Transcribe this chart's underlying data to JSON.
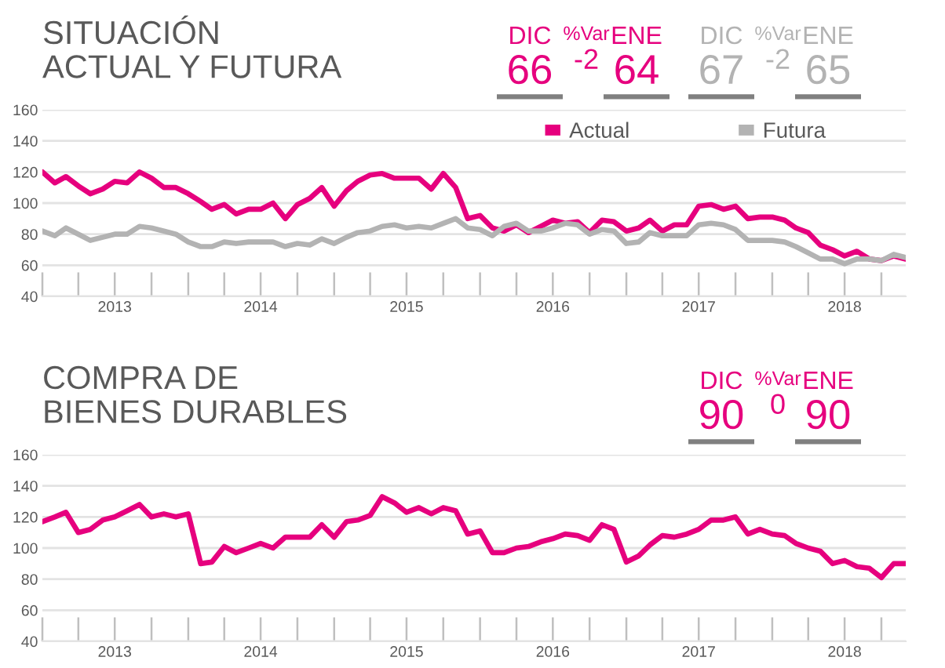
{
  "chart_data": [
    {
      "type": "line",
      "title": "SITUACIÓN\nACTUAL Y FUTURA",
      "annotations": [
        "DIC",
        "%Var",
        "ENE",
        "66",
        "-2",
        "64",
        "DIC",
        "%Var",
        "ENE",
        "67",
        "-2",
        "65"
      ],
      "x": [
        "2013-01",
        "2013-02",
        "2013-03",
        "2013-04",
        "2013-05",
        "2013-06",
        "2013-07",
        "2013-08",
        "2013-09",
        "2013-10",
        "2013-11",
        "2013-12",
        "2014-01",
        "2014-02",
        "2014-03",
        "2014-04",
        "2014-05",
        "2014-06",
        "2014-07",
        "2014-08",
        "2014-09",
        "2014-10",
        "2014-11",
        "2014-12",
        "2015-01",
        "2015-02",
        "2015-03",
        "2015-04",
        "2015-05",
        "2015-06",
        "2015-07",
        "2015-08",
        "2015-09",
        "2015-10",
        "2015-11",
        "2015-12",
        "2016-01",
        "2016-02",
        "2016-03",
        "2016-04",
        "2016-05",
        "2016-06",
        "2016-07",
        "2016-08",
        "2016-09",
        "2016-10",
        "2016-11",
        "2016-12",
        "2017-01",
        "2017-02",
        "2017-03",
        "2017-04",
        "2017-05",
        "2017-06",
        "2017-07",
        "2017-08",
        "2017-09",
        "2017-10",
        "2017-11",
        "2017-12",
        "2018-01",
        "2018-02",
        "2018-03",
        "2018-04",
        "2018-05",
        "2018-06",
        "2018-07",
        "2018-08",
        "2018-09",
        "2018-10",
        "2018-11",
        "2018-12"
      ],
      "series": [
        {
          "name": "Actual",
          "color": "#e6007e",
          "values": [
            120,
            113,
            117,
            111,
            106,
            109,
            114,
            113,
            120,
            116,
            110,
            110,
            106,
            101,
            96,
            99,
            93,
            96,
            96,
            100,
            90,
            99,
            103,
            110,
            98,
            108,
            114,
            118,
            119,
            116,
            116,
            116,
            109,
            119,
            110,
            90,
            92,
            84,
            82,
            86,
            81,
            85,
            89,
            87,
            88,
            81,
            89,
            88,
            82,
            84,
            89,
            82,
            86,
            86,
            98,
            99,
            96,
            98,
            90,
            91,
            91,
            89,
            84,
            81,
            73,
            70,
            66,
            69,
            64,
            63,
            66,
            64
          ]
        },
        {
          "name": "Futura",
          "color": "#b3b3b3",
          "values": [
            82,
            79,
            84,
            80,
            76,
            78,
            80,
            80,
            85,
            84,
            82,
            80,
            75,
            72,
            72,
            75,
            74,
            75,
            75,
            75,
            72,
            74,
            73,
            77,
            74,
            78,
            81,
            82,
            85,
            86,
            84,
            85,
            84,
            87,
            90,
            84,
            83,
            79,
            85,
            87,
            82,
            82,
            84,
            87,
            86,
            80,
            83,
            82,
            74,
            75,
            81,
            79,
            79,
            79,
            86,
            87,
            86,
            83,
            76,
            76,
            76,
            75,
            72,
            68,
            64,
            64,
            61,
            64,
            64,
            63,
            67,
            65
          ]
        }
      ],
      "xlim": [
        "2013-01",
        "2018-12"
      ],
      "xticks": [
        {
          "value": "2013-01",
          "label": null
        },
        {
          "value": "2013-04",
          "label": null
        },
        {
          "value": "2013-07",
          "label": "2013"
        },
        {
          "value": "2013-10",
          "label": null
        },
        {
          "value": "2014-01",
          "label": null
        },
        {
          "value": "2014-04",
          "label": null
        },
        {
          "value": "2014-07",
          "label": "2014"
        },
        {
          "value": "2014-10",
          "label": null
        },
        {
          "value": "2015-01",
          "label": null
        },
        {
          "value": "2015-04",
          "label": null
        },
        {
          "value": "2015-07",
          "label": "2015"
        },
        {
          "value": "2015-10",
          "label": null
        },
        {
          "value": "2016-01",
          "label": null
        },
        {
          "value": "2016-04",
          "label": null
        },
        {
          "value": "2016-07",
          "label": "2016"
        },
        {
          "value": "2016-10",
          "label": null
        },
        {
          "value": "2017-01",
          "label": null
        },
        {
          "value": "2017-04",
          "label": null
        },
        {
          "value": "2017-07",
          "label": "2017"
        },
        {
          "value": "2017-10",
          "label": null
        },
        {
          "value": "2018-01",
          "label": null
        },
        {
          "value": "2018-04",
          "label": null
        },
        {
          "value": "2018-07",
          "label": "2018"
        },
        {
          "value": "2018-10",
          "label": null
        }
      ],
      "ylim": [
        40,
        160
      ],
      "yticks": [
        40,
        60,
        80,
        100,
        120,
        140,
        160
      ],
      "grid": "y",
      "legend": "top right"
    },
    {
      "type": "line",
      "title": "COMPRA DE\nBIENES DURABLES",
      "annotations": [
        "DIC",
        "%Var",
        "ENE",
        "90",
        "0",
        "90"
      ],
      "x": [
        "2013-01",
        "2013-02",
        "2013-03",
        "2013-04",
        "2013-05",
        "2013-06",
        "2013-07",
        "2013-08",
        "2013-09",
        "2013-10",
        "2013-11",
        "2013-12",
        "2014-01",
        "2014-02",
        "2014-03",
        "2014-04",
        "2014-05",
        "2014-06",
        "2014-07",
        "2014-08",
        "2014-09",
        "2014-10",
        "2014-11",
        "2014-12",
        "2015-01",
        "2015-02",
        "2015-03",
        "2015-04",
        "2015-05",
        "2015-06",
        "2015-07",
        "2015-08",
        "2015-09",
        "2015-10",
        "2015-11",
        "2015-12",
        "2016-01",
        "2016-02",
        "2016-03",
        "2016-04",
        "2016-05",
        "2016-06",
        "2016-07",
        "2016-08",
        "2016-09",
        "2016-10",
        "2016-11",
        "2016-12",
        "2017-01",
        "2017-02",
        "2017-03",
        "2017-04",
        "2017-05",
        "2017-06",
        "2017-07",
        "2017-08",
        "2017-09",
        "2017-10",
        "2017-11",
        "2017-12",
        "2018-01",
        "2018-02",
        "2018-03",
        "2018-04",
        "2018-05",
        "2018-06",
        "2018-07",
        "2018-08",
        "2018-09",
        "2018-10",
        "2018-11",
        "2018-12"
      ],
      "series": [
        {
          "color": "#e6007e",
          "values": [
            117,
            120,
            123,
            110,
            112,
            118,
            120,
            124,
            128,
            120,
            122,
            120,
            122,
            90,
            91,
            101,
            97,
            100,
            103,
            100,
            107,
            107,
            107,
            115,
            107,
            117,
            118,
            121,
            133,
            129,
            123,
            126,
            122,
            126,
            124,
            109,
            111,
            97,
            97,
            100,
            101,
            104,
            106,
            109,
            108,
            105,
            115,
            112,
            91,
            95,
            102,
            108,
            107,
            109,
            112,
            118,
            118,
            120,
            109,
            112,
            109,
            108,
            103,
            100,
            98,
            90,
            92,
            88,
            87,
            81,
            90,
            90
          ]
        }
      ],
      "xlim": [
        "2013-01",
        "2018-12"
      ],
      "xticks": [
        {
          "value": "2013-01",
          "label": null
        },
        {
          "value": "2013-04",
          "label": null
        },
        {
          "value": "2013-07",
          "label": "2013"
        },
        {
          "value": "2013-10",
          "label": null
        },
        {
          "value": "2014-01",
          "label": null
        },
        {
          "value": "2014-04",
          "label": null
        },
        {
          "value": "2014-07",
          "label": "2014"
        },
        {
          "value": "2014-10",
          "label": null
        },
        {
          "value": "2015-01",
          "label": null
        },
        {
          "value": "2015-04",
          "label": null
        },
        {
          "value": "2015-07",
          "label": "2015"
        },
        {
          "value": "2015-10",
          "label": null
        },
        {
          "value": "2016-01",
          "label": null
        },
        {
          "value": "2016-04",
          "label": null
        },
        {
          "value": "2016-07",
          "label": "2016"
        },
        {
          "value": "2016-10",
          "label": null
        },
        {
          "value": "2017-01",
          "label": null
        },
        {
          "value": "2017-04",
          "label": null
        },
        {
          "value": "2017-07",
          "label": "2017"
        },
        {
          "value": "2017-10",
          "label": null
        },
        {
          "value": "2018-01",
          "label": null
        },
        {
          "value": "2018-04",
          "label": null
        },
        {
          "value": "2018-07",
          "label": "2018"
        },
        {
          "value": "2018-10",
          "label": null
        }
      ],
      "ylim": [
        40,
        160
      ],
      "yticks": [
        40,
        60,
        80,
        100,
        120,
        140,
        160
      ],
      "grid": "y"
    }
  ]
}
